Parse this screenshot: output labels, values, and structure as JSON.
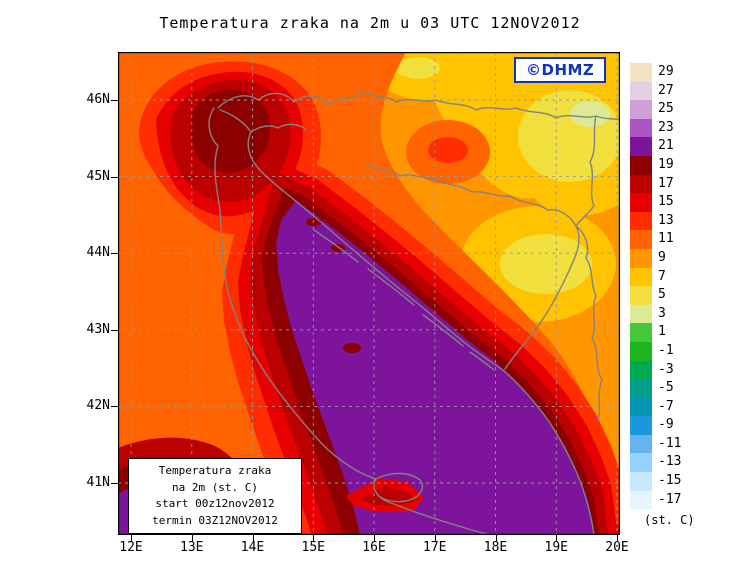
{
  "title": "Temperatura zraka na 2m u 03 UTC 12NOV2012",
  "watermark": "©DHMZ",
  "info_box": {
    "lines": [
      "Temperatura zraka",
      "na 2m (st. C)",
      "start 00z12nov2012",
      "termin 03Z12NOV2012"
    ]
  },
  "axes": {
    "x_ticks": [
      "12E",
      "13E",
      "14E",
      "15E",
      "16E",
      "17E",
      "18E",
      "19E",
      "20E"
    ],
    "y_ticks": [
      "46N",
      "45N",
      "44N",
      "43N",
      "42N",
      "41N"
    ]
  },
  "legend": {
    "unit_label": "(st. C)",
    "entries": [
      {
        "value": "29",
        "color": "#f2e3c2"
      },
      {
        "value": "27",
        "color": "#e3d0e0"
      },
      {
        "value": "25",
        "color": "#cfa0d8"
      },
      {
        "value": "23",
        "color": "#ab55c3"
      },
      {
        "value": "21",
        "color": "#7d149b"
      },
      {
        "value": "19",
        "color": "#8c0000"
      },
      {
        "value": "17",
        "color": "#bb0000"
      },
      {
        "value": "15",
        "color": "#e60000"
      },
      {
        "value": "13",
        "color": "#ff2d00"
      },
      {
        "value": "11",
        "color": "#ff6400"
      },
      {
        "value": "9",
        "color": "#ff9600"
      },
      {
        "value": "7",
        "color": "#ffc300"
      },
      {
        "value": "5",
        "color": "#f0df3c"
      },
      {
        "value": "3",
        "color": "#dcea96"
      },
      {
        "value": "1",
        "color": "#46c83c"
      },
      {
        "value": "-1",
        "color": "#1eb41e"
      },
      {
        "value": "-3",
        "color": "#00aa50"
      },
      {
        "value": "-5",
        "color": "#00a08c"
      },
      {
        "value": "-7",
        "color": "#0096b4"
      },
      {
        "value": "-9",
        "color": "#1e96dc"
      },
      {
        "value": "-11",
        "color": "#64b4f0"
      },
      {
        "value": "-13",
        "color": "#96d2ff"
      },
      {
        "value": "-15",
        "color": "#c8e8ff"
      },
      {
        "value": "-17",
        "color": "#e6f6ff"
      }
    ]
  },
  "chart_data": {
    "type": "heatmap",
    "title": "Temperatura zraka na 2m u 03 UTC 12NOV2012",
    "units": "st. C",
    "x_range": [
      "12E",
      "20E"
    ],
    "y_range": [
      "41N",
      "46N"
    ],
    "scale_values_c": [
      29,
      27,
      25,
      23,
      21,
      19,
      17,
      15,
      13,
      11,
      9,
      7,
      5,
      3,
      1,
      -1,
      -3,
      -5,
      -7,
      -9,
      -11,
      -13,
      -15,
      -17
    ],
    "regions": [
      {
        "area": "Adriatic Sea (open sea, SE diagonal band)",
        "approx_temp_c": "19-23"
      },
      {
        "area": "Croatian coastal belt / islands",
        "approx_temp_c": "15-19"
      },
      {
        "area": "Italian Adriatic coast and hinterland",
        "approx_temp_c": "11-17"
      },
      {
        "area": "NW corner / Alps-Trieste-Istria dark patch",
        "approx_temp_c": "15-19"
      },
      {
        "area": "Inland Croatia / Bosnia (orange background)",
        "approx_temp_c": "9-11"
      },
      {
        "area": "NE lowlands yellow patches (Slavonia, top-right)",
        "approx_temp_c": "3-7"
      },
      {
        "area": "SW corner sea patch (bottom-left)",
        "approx_temp_c": "21-25"
      }
    ],
    "grid": "1-degree dashed graticule",
    "legend_position": "right"
  }
}
